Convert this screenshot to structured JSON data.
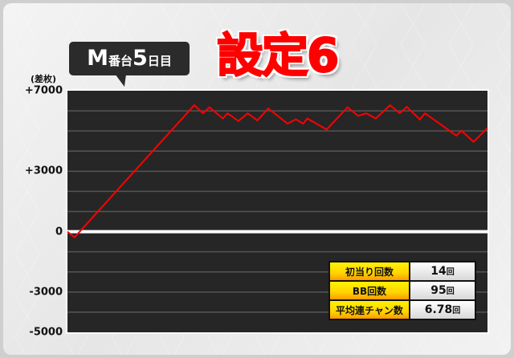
{
  "header": {
    "machine_label": "M番台",
    "day_number": "5",
    "day_suffix": "日目",
    "setting_title": "設定6"
  },
  "stats": [
    {
      "label": "初当り回数",
      "value": "14",
      "unit": "回"
    },
    {
      "label": "BB回数",
      "value": "95",
      "unit": "回"
    },
    {
      "label": "平均連チャン数",
      "value": "6.78",
      "unit": "回"
    }
  ],
  "colors": {
    "line": "#ff0000",
    "plot_bg": "#262626",
    "title": "#ff0000"
  },
  "chart_data": {
    "type": "line",
    "ylabel": "(差枚)",
    "ylim": [
      -5000,
      7000
    ],
    "y_ticks": [
      {
        "value": 7000,
        "label": "+7000"
      },
      {
        "value": 3000,
        "label": "+3000"
      },
      {
        "value": 0,
        "label": "0"
      },
      {
        "value": -3000,
        "label": "-3000"
      },
      {
        "value": -5000,
        "label": "-5000"
      }
    ],
    "grid": true,
    "grid_step": 1000,
    "x_note": "x as fraction of the day's session (no x axis labels shown)",
    "series": [
      {
        "points": [
          [
            0,
            0
          ],
          [
            0.017,
            -280
          ],
          [
            0.302,
            6280
          ],
          [
            0.323,
            5880
          ],
          [
            0.338,
            6180
          ],
          [
            0.37,
            5620
          ],
          [
            0.381,
            5880
          ],
          [
            0.407,
            5490
          ],
          [
            0.429,
            5880
          ],
          [
            0.452,
            5520
          ],
          [
            0.478,
            6120
          ],
          [
            0.524,
            5360
          ],
          [
            0.544,
            5580
          ],
          [
            0.561,
            5360
          ],
          [
            0.571,
            5620
          ],
          [
            0.617,
            5070
          ],
          [
            0.667,
            6180
          ],
          [
            0.692,
            5750
          ],
          [
            0.711,
            5880
          ],
          [
            0.734,
            5620
          ],
          [
            0.768,
            6280
          ],
          [
            0.791,
            5880
          ],
          [
            0.808,
            6200
          ],
          [
            0.839,
            5570
          ],
          [
            0.851,
            5880
          ],
          [
            0.926,
            4770
          ],
          [
            0.938,
            5010
          ],
          [
            0.967,
            4460
          ],
          [
            1.0,
            5150
          ]
        ]
      }
    ]
  }
}
